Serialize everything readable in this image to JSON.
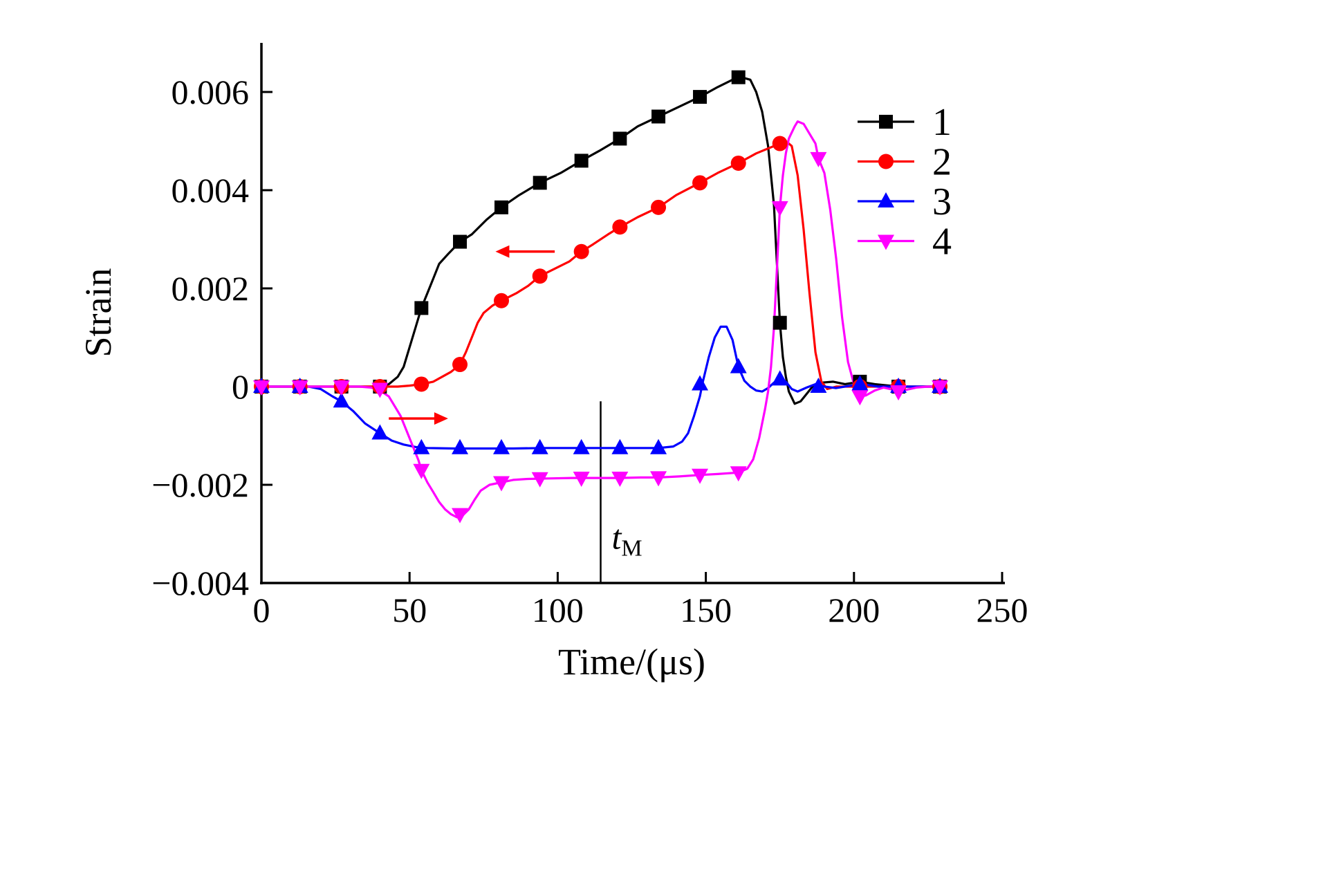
{
  "page": {
    "background": "#ffffff"
  },
  "chart_data": {
    "type": "line",
    "title": "",
    "xlabel": "Time/(μs)",
    "ylabel": "Strain",
    "xlim": [
      0,
      250
    ],
    "ylim": [
      -0.004,
      0.007
    ],
    "grid": false,
    "legend_position": "top-right",
    "xticks": {
      "values": [
        0,
        50,
        100,
        150,
        200,
        250
      ],
      "labels": [
        "0",
        "50",
        "100",
        "150",
        "200",
        "250"
      ]
    },
    "yticks": {
      "values": [
        -0.004,
        -0.002,
        0,
        0.002,
        0.004,
        0.006
      ],
      "labels": [
        "−0.004",
        "−0.002",
        "0",
        "0.002",
        "0.004",
        "0.006"
      ]
    },
    "annotations": {
      "vline": {
        "x": 114.5,
        "y1": -0.004,
        "y2": -0.0003,
        "label": "t",
        "label_sub": "M",
        "label_y": -0.0033
      },
      "arrows": [
        {
          "x_tail": 99,
          "x_head": 79,
          "y": 0.00275,
          "color": "#ff0000"
        },
        {
          "x_tail": 43,
          "x_head": 63,
          "y": -0.00065,
          "color": "#ff0000"
        }
      ]
    },
    "series": [
      {
        "name": "1",
        "color": "#000000",
        "marker": "square",
        "curve": [
          [
            0,
            0
          ],
          [
            12,
            0
          ],
          [
            24,
            0
          ],
          [
            34,
            0
          ],
          [
            40,
            0
          ],
          [
            43,
            5e-05
          ],
          [
            46,
            0.0002
          ],
          [
            48,
            0.0004
          ],
          [
            50,
            0.0008
          ],
          [
            52,
            0.0012
          ],
          [
            54,
            0.0016
          ],
          [
            56,
            0.0019
          ],
          [
            58,
            0.0022
          ],
          [
            60,
            0.0025
          ],
          [
            63,
            0.0027
          ],
          [
            67,
            0.00295
          ],
          [
            71,
            0.0031
          ],
          [
            76,
            0.0034
          ],
          [
            81,
            0.00365
          ],
          [
            87,
            0.0039
          ],
          [
            94,
            0.00415
          ],
          [
            101,
            0.00435
          ],
          [
            108,
            0.0046
          ],
          [
            114,
            0.0048
          ],
          [
            121,
            0.00505
          ],
          [
            127,
            0.0053
          ],
          [
            134,
            0.0055
          ],
          [
            141,
            0.0057
          ],
          [
            148,
            0.0059
          ],
          [
            154,
            0.0061
          ],
          [
            159,
            0.00625
          ],
          [
            162,
            0.0063
          ],
          [
            165,
            0.00625
          ],
          [
            167,
            0.006
          ],
          [
            169,
            0.0056
          ],
          [
            171,
            0.0049
          ],
          [
            173,
            0.0037
          ],
          [
            175,
            0.0013
          ],
          [
            176,
            0.0006
          ],
          [
            177,
            0.0002
          ],
          [
            178,
            -0.0001
          ],
          [
            180,
            -0.00035
          ],
          [
            182,
            -0.0003
          ],
          [
            184,
            -0.00015
          ],
          [
            186,
            0
          ],
          [
            189,
            8e-05
          ],
          [
            193,
            0.0001
          ],
          [
            197,
            5e-05
          ],
          [
            202,
            0.0001
          ],
          [
            207,
            5e-05
          ],
          [
            215,
            0
          ],
          [
            222,
            0
          ],
          [
            229,
            0
          ]
        ],
        "markers": [
          [
            0,
            0
          ],
          [
            13,
            0
          ],
          [
            27,
            0
          ],
          [
            40,
            0
          ],
          [
            54,
            0.0016
          ],
          [
            67,
            0.00295
          ],
          [
            81,
            0.00365
          ],
          [
            94,
            0.00415
          ],
          [
            108,
            0.0046
          ],
          [
            121,
            0.00505
          ],
          [
            134,
            0.0055
          ],
          [
            148,
            0.0059
          ],
          [
            161,
            0.0063
          ],
          [
            175,
            0.0013
          ],
          [
            202,
            0.0001
          ],
          [
            215,
            0
          ],
          [
            229,
            0
          ]
        ]
      },
      {
        "name": "2",
        "color": "#ff0000",
        "marker": "circle",
        "curve": [
          [
            0,
            0
          ],
          [
            12,
            0
          ],
          [
            24,
            0
          ],
          [
            36,
            0
          ],
          [
            46,
            0
          ],
          [
            50,
            2e-05
          ],
          [
            54,
            5e-05
          ],
          [
            58,
            0.0001
          ],
          [
            61,
            0.0002
          ],
          [
            64,
            0.0003
          ],
          [
            67,
            0.00045
          ],
          [
            69,
            0.0007
          ],
          [
            71,
            0.001
          ],
          [
            73,
            0.0013
          ],
          [
            75,
            0.0015
          ],
          [
            78,
            0.00165
          ],
          [
            81,
            0.00175
          ],
          [
            86,
            0.0019
          ],
          [
            90,
            0.00205
          ],
          [
            94,
            0.00225
          ],
          [
            99,
            0.0024
          ],
          [
            104,
            0.00255
          ],
          [
            108,
            0.00275
          ],
          [
            112,
            0.0029
          ],
          [
            117,
            0.0031
          ],
          [
            121,
            0.00325
          ],
          [
            127,
            0.00345
          ],
          [
            134,
            0.00365
          ],
          [
            140,
            0.0039
          ],
          [
            148,
            0.00415
          ],
          [
            154,
            0.00435
          ],
          [
            161,
            0.00455
          ],
          [
            167,
            0.00475
          ],
          [
            175,
            0.00495
          ],
          [
            177,
            0.005
          ],
          [
            179,
            0.0049
          ],
          [
            181,
            0.0043
          ],
          [
            183,
            0.0032
          ],
          [
            185,
            0.0019
          ],
          [
            187,
            0.0007
          ],
          [
            189,
            0.0001
          ],
          [
            191,
            -5e-05
          ],
          [
            194,
            0
          ],
          [
            200,
            0
          ],
          [
            207,
            0
          ],
          [
            215,
            0
          ],
          [
            222,
            0
          ],
          [
            229,
            0
          ]
        ],
        "markers": [
          [
            0,
            0
          ],
          [
            13,
            0
          ],
          [
            27,
            0
          ],
          [
            40,
            0
          ],
          [
            54,
            5e-05
          ],
          [
            67,
            0.00045
          ],
          [
            81,
            0.00175
          ],
          [
            94,
            0.00225
          ],
          [
            108,
            0.00275
          ],
          [
            121,
            0.00325
          ],
          [
            134,
            0.00365
          ],
          [
            148,
            0.00415
          ],
          [
            161,
            0.00455
          ],
          [
            175,
            0.00495
          ],
          [
            202,
            0
          ],
          [
            215,
            0
          ],
          [
            229,
            0
          ]
        ]
      },
      {
        "name": "3",
        "color": "#0000ff",
        "marker": "triangle-up",
        "curve": [
          [
            0,
            0
          ],
          [
            10,
            0
          ],
          [
            16,
            0
          ],
          [
            20,
            -5e-05
          ],
          [
            24,
            -0.0002
          ],
          [
            27,
            -0.0003
          ],
          [
            31,
            -0.0005
          ],
          [
            35,
            -0.00075
          ],
          [
            40,
            -0.00095
          ],
          [
            44,
            -0.0011
          ],
          [
            48,
            -0.00118
          ],
          [
            52,
            -0.00123
          ],
          [
            56,
            -0.00125
          ],
          [
            65,
            -0.00126
          ],
          [
            75,
            -0.00126
          ],
          [
            85,
            -0.00126
          ],
          [
            95,
            -0.00125
          ],
          [
            105,
            -0.00125
          ],
          [
            115,
            -0.00125
          ],
          [
            125,
            -0.00125
          ],
          [
            134,
            -0.00125
          ],
          [
            139,
            -0.00122
          ],
          [
            142,
            -0.00112
          ],
          [
            144,
            -0.00095
          ],
          [
            146,
            -0.0006
          ],
          [
            148,
            -0.0002
          ],
          [
            149,
            0.0001
          ],
          [
            151,
            0.0006
          ],
          [
            153,
            0.001
          ],
          [
            155,
            0.00122
          ],
          [
            157,
            0.00122
          ],
          [
            159,
            0.00095
          ],
          [
            161,
            0.0004
          ],
          [
            163,
            0.00012
          ],
          [
            165,
            0
          ],
          [
            167,
            -8e-05
          ],
          [
            169,
            -0.0001
          ],
          [
            171,
            -3e-05
          ],
          [
            173,
            8e-05
          ],
          [
            175,
            0.00015
          ],
          [
            177,
            0.0001
          ],
          [
            179,
            -5e-05
          ],
          [
            181,
            -0.0001
          ],
          [
            184,
            -2e-05
          ],
          [
            187,
            5e-05
          ],
          [
            190,
            0
          ],
          [
            194,
            -3e-05
          ],
          [
            199,
            2e-05
          ],
          [
            203,
            5e-05
          ],
          [
            208,
            0
          ],
          [
            215,
            0
          ],
          [
            222,
            0
          ],
          [
            229,
            0
          ]
        ],
        "markers": [
          [
            0,
            0
          ],
          [
            13,
            0
          ],
          [
            27,
            -0.0003
          ],
          [
            40,
            -0.00095
          ],
          [
            54,
            -0.00125
          ],
          [
            67,
            -0.00125
          ],
          [
            81,
            -0.00125
          ],
          [
            94,
            -0.00125
          ],
          [
            108,
            -0.00125
          ],
          [
            121,
            -0.00125
          ],
          [
            134,
            -0.00125
          ],
          [
            148,
            5e-05
          ],
          [
            161,
            0.0004
          ],
          [
            175,
            0.00015
          ],
          [
            188,
            0
          ],
          [
            202,
            5e-05
          ],
          [
            215,
            0
          ],
          [
            229,
            0
          ]
        ]
      },
      {
        "name": "4",
        "color": "#ff00ff",
        "marker": "triangle-down",
        "curve": [
          [
            0,
            0
          ],
          [
            12,
            0
          ],
          [
            24,
            0
          ],
          [
            33,
            0
          ],
          [
            37,
            -2e-05
          ],
          [
            40,
            -8e-05
          ],
          [
            43,
            -0.0002
          ],
          [
            45,
            -0.0004
          ],
          [
            47,
            -0.0006
          ],
          [
            49,
            -0.0009
          ],
          [
            51,
            -0.0012
          ],
          [
            53,
            -0.0015
          ],
          [
            54,
            -0.0017
          ],
          [
            56,
            -0.00195
          ],
          [
            58,
            -0.00215
          ],
          [
            60,
            -0.00235
          ],
          [
            62,
            -0.0025
          ],
          [
            64,
            -0.0026
          ],
          [
            66,
            -0.00266
          ],
          [
            68,
            -0.00262
          ],
          [
            70,
            -0.0025
          ],
          [
            72,
            -0.0023
          ],
          [
            74,
            -0.00212
          ],
          [
            77,
            -0.002
          ],
          [
            81,
            -0.00195
          ],
          [
            85,
            -0.0019
          ],
          [
            90,
            -0.00188
          ],
          [
            97,
            -0.00187
          ],
          [
            105,
            -0.00186
          ],
          [
            113,
            -0.00186
          ],
          [
            121,
            -0.00186
          ],
          [
            128,
            -0.00185
          ],
          [
            134,
            -0.00185
          ],
          [
            141,
            -0.00183
          ],
          [
            148,
            -0.0018
          ],
          [
            154,
            -0.00178
          ],
          [
            161,
            -0.00175
          ],
          [
            164,
            -0.00167
          ],
          [
            166,
            -0.00148
          ],
          [
            168,
            -0.00105
          ],
          [
            170,
            -0.00045
          ],
          [
            171,
            -0.0001
          ],
          [
            172,
            0.0004
          ],
          [
            173,
            0.0012
          ],
          [
            174,
            0.0024
          ],
          [
            175,
            0.00365
          ],
          [
            176,
            0.0043
          ],
          [
            177,
            0.00475
          ],
          [
            178,
            0.00505
          ],
          [
            180,
            0.0053
          ],
          [
            181,
            0.0054
          ],
          [
            183,
            0.00535
          ],
          [
            185,
            0.00515
          ],
          [
            187,
            0.00495
          ],
          [
            188,
            0.00465
          ],
          [
            190,
            0.00435
          ],
          [
            192,
            0.0036
          ],
          [
            194,
            0.0026
          ],
          [
            196,
            0.0014
          ],
          [
            198,
            0.0005
          ],
          [
            200,
            5e-05
          ],
          [
            202,
            -0.0002
          ],
          [
            204,
            -0.00018
          ],
          [
            207,
            -8e-05
          ],
          [
            210,
            -2e-05
          ],
          [
            213,
            -6e-05
          ],
          [
            215,
            -0.0001
          ],
          [
            218,
            -6e-05
          ],
          [
            221,
            -2e-05
          ],
          [
            225,
            0
          ],
          [
            229,
            0
          ]
        ],
        "markers": [
          [
            0,
            0
          ],
          [
            13,
            0
          ],
          [
            27,
            0
          ],
          [
            40,
            -5e-05
          ],
          [
            54,
            -0.0017
          ],
          [
            67,
            -0.0026
          ],
          [
            81,
            -0.00195
          ],
          [
            94,
            -0.00187
          ],
          [
            108,
            -0.00186
          ],
          [
            121,
            -0.00186
          ],
          [
            134,
            -0.00185
          ],
          [
            148,
            -0.0018
          ],
          [
            161,
            -0.00175
          ],
          [
            175,
            0.00365
          ],
          [
            188,
            0.00465
          ],
          [
            202,
            -0.0002
          ],
          [
            215,
            -0.0001
          ],
          [
            229,
            0
          ]
        ]
      }
    ]
  }
}
